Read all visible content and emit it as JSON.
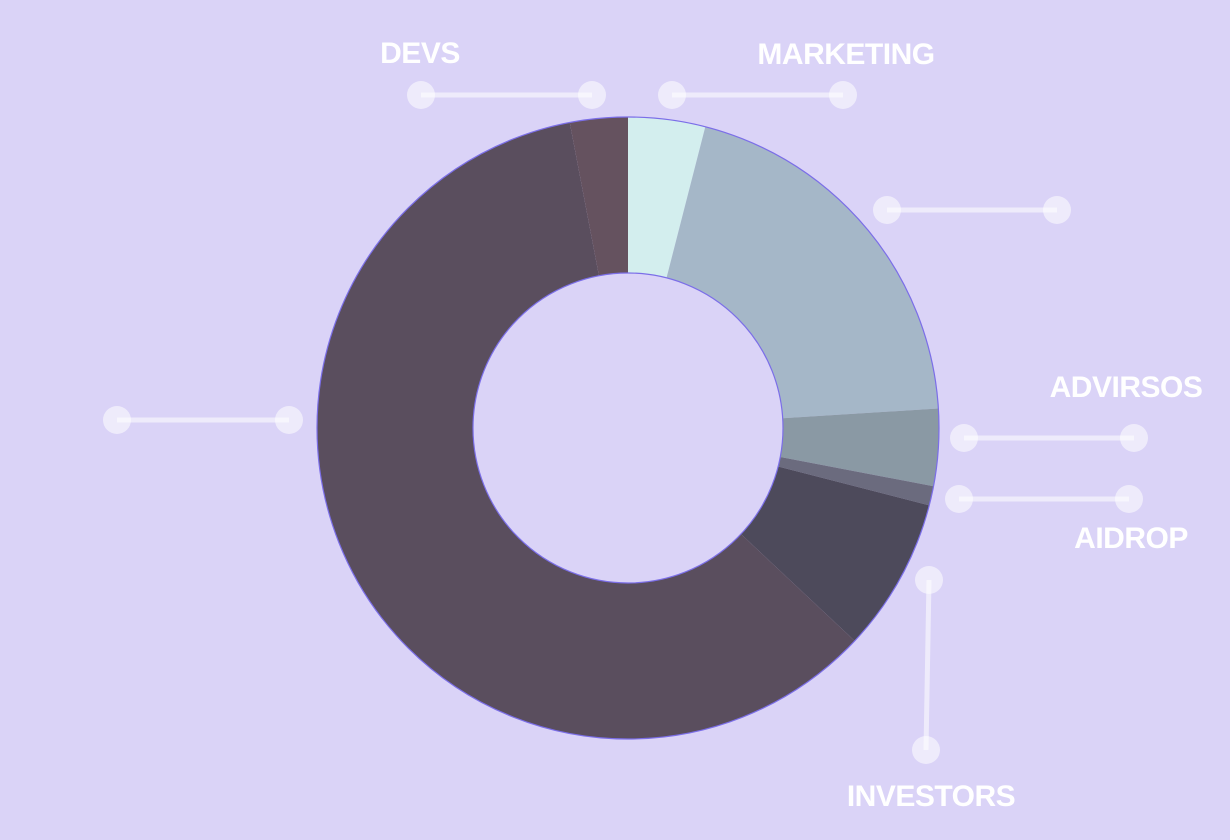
{
  "chart_data": {
    "type": "donut",
    "categories": [
      "MARKETING",
      null,
      "ADVIRSOS",
      "AIDROP",
      "INVESTORS",
      null,
      "DEVS"
    ],
    "values": [
      4,
      20,
      4,
      1,
      8,
      60,
      3
    ],
    "colors": [
      "#d3eeee",
      "#a5b7c8",
      "#8a99a4",
      "#6b6b7e",
      "#4d4a5b",
      "#5a4e5e",
      "#65525f"
    ]
  }
}
